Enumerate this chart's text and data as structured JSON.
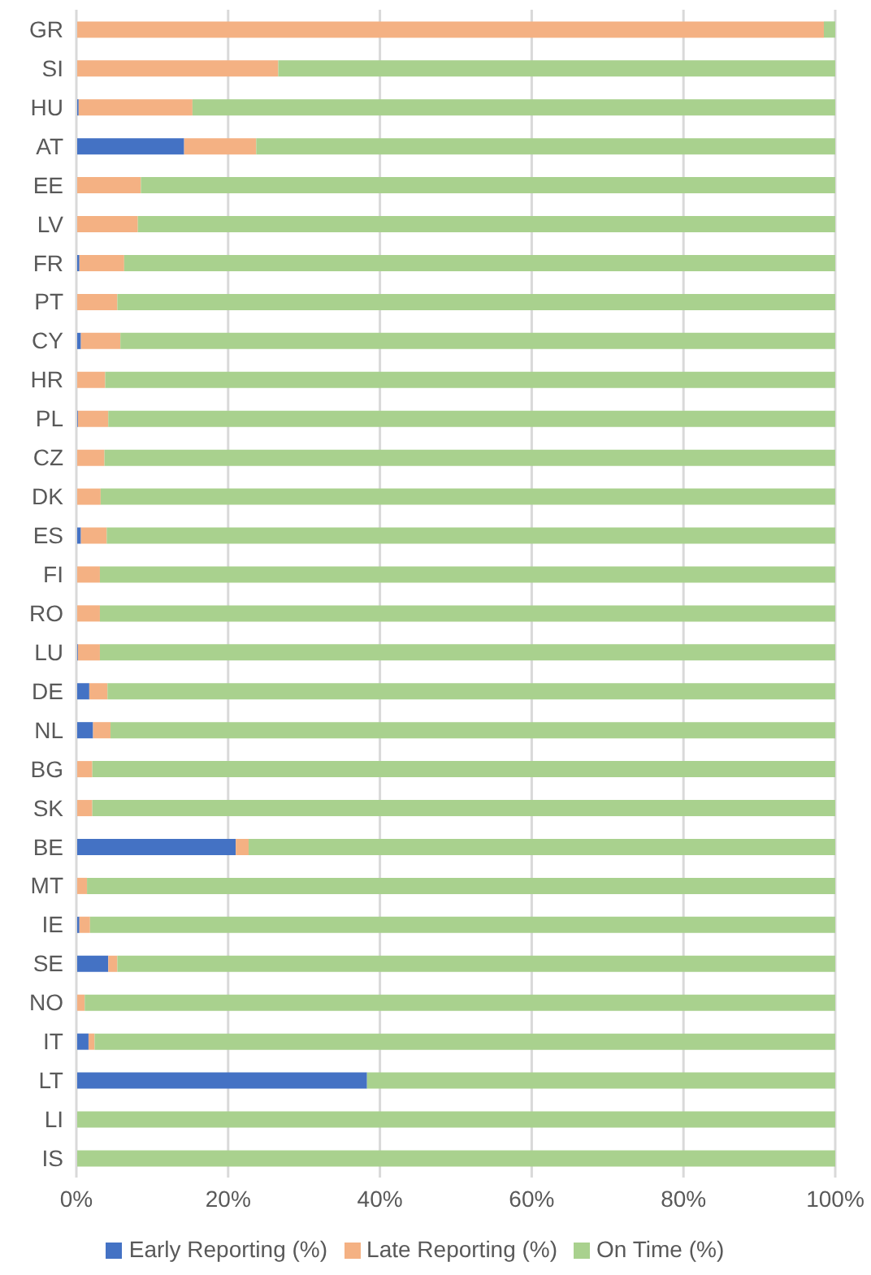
{
  "chart_data": {
    "type": "bar",
    "orientation": "horizontal",
    "stacked": true,
    "categories": [
      "GR",
      "SI",
      "HU",
      "AT",
      "EE",
      "LV",
      "FR",
      "PT",
      "CY",
      "HR",
      "PL",
      "CZ",
      "DK",
      "ES",
      "FI",
      "RO",
      "LU",
      "DE",
      "NL",
      "BG",
      "SK",
      "BE",
      "MT",
      "IE",
      "SE",
      "NO",
      "IT",
      "LT",
      "LI",
      "IS"
    ],
    "series": [
      {
        "name": "Early Reporting (%)",
        "color": "#4472c4",
        "values": [
          0,
          0,
          0.3,
          14.2,
          0,
          0,
          0.4,
          0,
          0.6,
          0,
          0.2,
          0,
          0,
          0.6,
          0,
          0,
          0.2,
          1.7,
          2.2,
          0,
          0,
          21.0,
          0,
          0.4,
          4.2,
          0,
          1.6,
          38.3,
          0,
          0
        ]
      },
      {
        "name": "Late Reporting (%)",
        "color": "#f4b183",
        "values": [
          98.5,
          26.6,
          15.0,
          9.5,
          8.5,
          8.1,
          5.9,
          5.4,
          5.2,
          3.8,
          4.0,
          3.7,
          3.2,
          3.4,
          3.1,
          3.1,
          2.9,
          2.4,
          2.3,
          2.1,
          2.1,
          1.7,
          1.4,
          1.4,
          1.2,
          1.1,
          0.8,
          0,
          0,
          0
        ]
      },
      {
        "name": "On Time (%)",
        "color": "#a9d18e",
        "values": [
          1.5,
          73.4,
          84.7,
          76.3,
          91.5,
          91.9,
          93.7,
          94.6,
          94.2,
          96.2,
          95.8,
          96.3,
          96.8,
          96.0,
          96.9,
          96.9,
          96.9,
          95.9,
          95.5,
          97.9,
          97.9,
          77.3,
          98.6,
          98.2,
          94.6,
          98.9,
          97.6,
          61.7,
          100,
          100
        ]
      }
    ],
    "xlim": [
      0,
      100
    ],
    "xticks": [
      {
        "value": 0,
        "label": "0%"
      },
      {
        "value": 20,
        "label": "20%"
      },
      {
        "value": 40,
        "label": "40%"
      },
      {
        "value": 60,
        "label": "60%"
      },
      {
        "value": 80,
        "label": "80%"
      },
      {
        "value": 100,
        "label": "100%"
      }
    ],
    "grid": "x",
    "legend": "bottom"
  }
}
